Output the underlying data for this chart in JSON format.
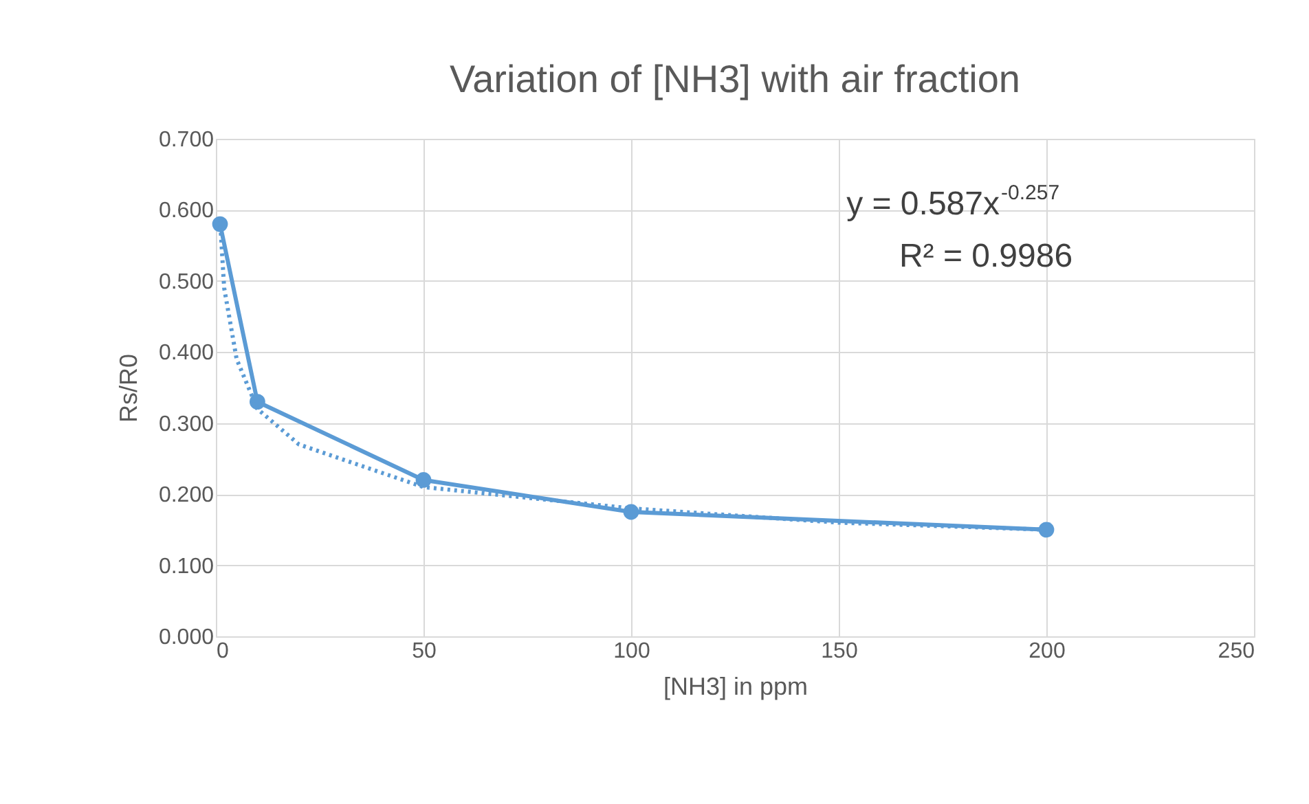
{
  "chart_data": {
    "type": "line",
    "title": "Variation of [NH3] with air fraction",
    "xlabel": "[NH3] in ppm",
    "ylabel": "Rs/R0",
    "series": [
      {
        "color": "#5b9bd5",
        "x": [
          1,
          10,
          50,
          100,
          200
        ],
        "values": [
          0.58,
          0.33,
          0.22,
          0.175,
          0.15
        ],
        "marker": "circle",
        "line_style": "solid"
      },
      {
        "type": "line",
        "color": "#5b9bd5",
        "x": [
          1,
          2,
          5,
          10,
          20,
          50,
          100,
          150,
          200
        ],
        "values": [
          0.587,
          0.49,
          0.39,
          0.32,
          0.27,
          0.21,
          0.18,
          0.16,
          0.15
        ],
        "marker": "none",
        "line_style": "dotted"
      }
    ],
    "annotations": [
      "y = 0.587x$^{-0.257}$",
      "R² = 0.9986"
    ],
    "xlim": [
      0,
      250
    ],
    "xticks": [
      0,
      50,
      100,
      150,
      200,
      250
    ],
    "ylim": [
      0,
      0.7
    ],
    "yticks": [
      {
        "value": 0,
        "label": "0.000"
      },
      {
        "value": 0.1,
        "label": "0.100"
      },
      {
        "value": 0.2,
        "label": "0.200"
      },
      {
        "value": 0.3,
        "label": "0.300"
      },
      {
        "value": 0.4,
        "label": "0.400"
      },
      {
        "value": 0.5,
        "label": "0.500"
      },
      {
        "value": 0.6,
        "label": "0.600"
      },
      {
        "value": 0.7,
        "label": "0.700"
      }
    ],
    "grid": true
  }
}
